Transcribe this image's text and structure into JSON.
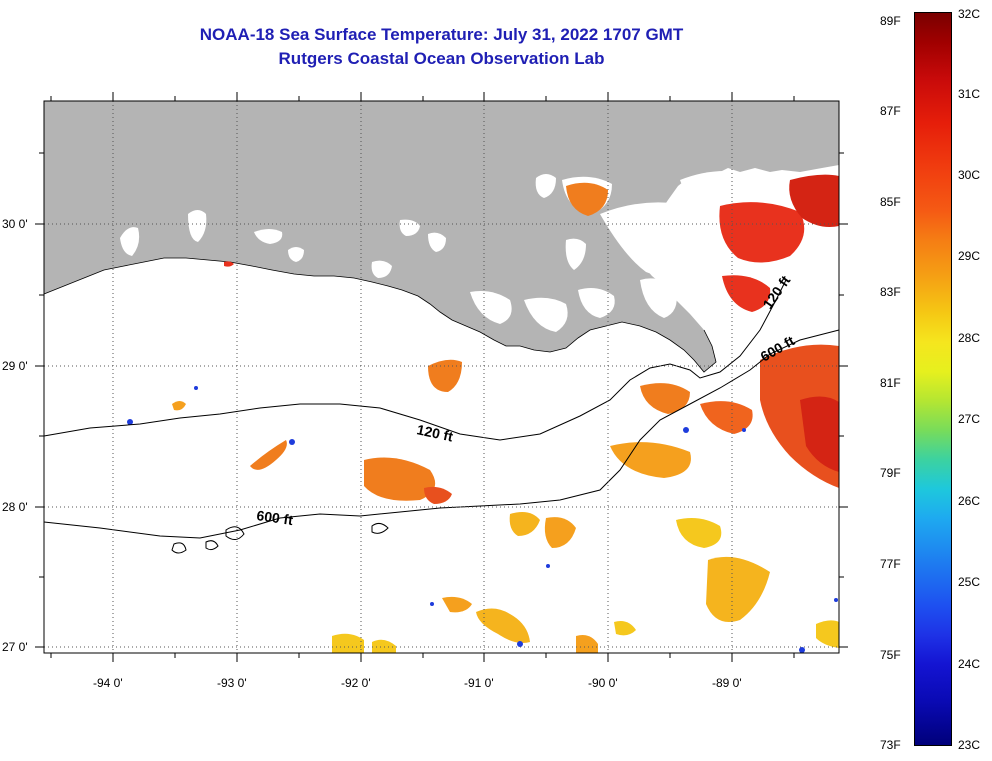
{
  "title": {
    "line1": "NOAA-18 Sea Surface Temperature:  July 31, 2022 1707 GMT",
    "line2": "Rutgers Coastal Ocean Observation Lab"
  },
  "axes": {
    "lon_labels": [
      "-94 0'",
      "-93 0'",
      "-92 0'",
      "-91 0'",
      "-90 0'",
      "-89 0'"
    ],
    "lat_labels": [
      "30 0'",
      "29 0'",
      "28 0'",
      "27 0'"
    ]
  },
  "contours": {
    "label_120_a": "120 ft",
    "label_600_a": "600 ft",
    "label_120_b": "120 ft",
    "label_600_b": "600 ft"
  },
  "colorbar": {
    "fahrenheit": [
      "89F",
      "87F",
      "85F",
      "83F",
      "81F",
      "79F",
      "77F",
      "75F",
      "73F"
    ],
    "celsius": [
      "32C",
      "31C",
      "30C",
      "29C",
      "28C",
      "27C",
      "26C",
      "25C",
      "24C",
      "23C"
    ]
  },
  "colors": {
    "title": "#1f1fb4",
    "land": "#b4b4b4",
    "ocean": "#ffffff",
    "hot": "#e8321e",
    "warm": "#f07d1e",
    "mild": "#f5b41e",
    "cool": "#3c8cf0"
  }
}
